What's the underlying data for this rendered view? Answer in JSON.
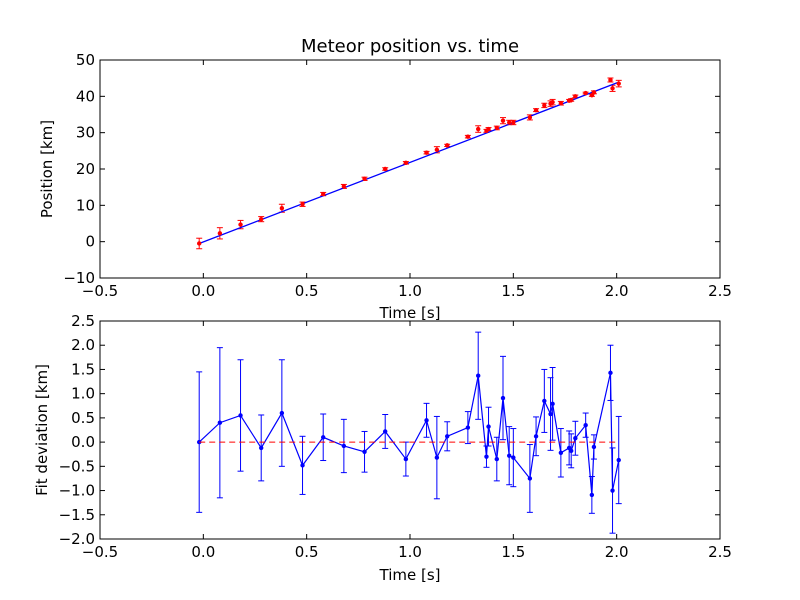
{
  "chart_data": [
    {
      "type": "scatter",
      "title": "Meteor position vs. time",
      "xlabel": "Time [s]",
      "ylabel": "Position [km]",
      "xlim": [
        -0.5,
        2.5
      ],
      "ylim": [
        -10,
        50
      ],
      "xticks": [
        -0.5,
        0.0,
        0.5,
        1.0,
        1.5,
        2.0,
        2.5
      ],
      "xtick_labels": [
        "−0.5",
        "0.0",
        "0.5",
        "1.0",
        "1.5",
        "2.0",
        "2.5"
      ],
      "yticks": [
        -10,
        0,
        10,
        20,
        30,
        40,
        50
      ],
      "ytick_labels": [
        "−10",
        "0",
        "10",
        "20",
        "30",
        "40",
        "50"
      ],
      "grid": false,
      "series": [
        {
          "kind": "measurements",
          "color": "#ff0000",
          "x": [
            -0.02,
            0.08,
            0.18,
            0.28,
            0.38,
            0.48,
            0.58,
            0.68,
            0.78,
            0.88,
            0.98,
            1.08,
            1.13,
            1.18,
            1.28,
            1.33,
            1.37,
            1.38,
            1.42,
            1.45,
            1.48,
            1.5,
            1.58,
            1.61,
            1.65,
            1.68,
            1.69,
            1.73,
            1.77,
            1.78,
            1.8,
            1.85,
            1.88,
            1.89,
            1.97,
            1.98,
            2.01
          ],
          "y": [
            -0.5,
            2.3,
            4.7,
            6.2,
            9.2,
            10.3,
            13.1,
            15.2,
            17.3,
            20.0,
            21.7,
            24.5,
            25.3,
            26.5,
            28.9,
            31.0,
            30.5,
            31.0,
            31.3,
            33.3,
            32.8,
            32.8,
            34.2,
            36.2,
            37.5,
            38.0,
            38.4,
            38.1,
            38.8,
            39.0,
            40.0,
            40.9,
            40.3,
            41.1,
            44.5,
            42.2,
            43.5
          ],
          "yerr": [
            1.45,
            1.55,
            1.15,
            0.7,
            1.1,
            0.6,
            0.45,
            0.55,
            0.45,
            0.35,
            0.35,
            0.35,
            0.85,
            0.3,
            0.35,
            0.9,
            0.4,
            0.4,
            0.5,
            0.85,
            0.6,
            0.6,
            0.7,
            0.4,
            0.6,
            0.75,
            0.75,
            0.5,
            0.35,
            0.35,
            0.35,
            0.25,
            0.3,
            0.4,
            0.55,
            0.85,
            0.9
          ]
        },
        {
          "kind": "fit",
          "color": "#0000ff",
          "x": [
            -0.02,
            2.01
          ],
          "y": [
            -0.5,
            43.9
          ]
        }
      ]
    },
    {
      "type": "line",
      "title": "",
      "xlabel": "Time [s]",
      "ylabel": "Fit deviation [km]",
      "xlim": [
        -0.5,
        2.5
      ],
      "ylim": [
        -2.0,
        2.5
      ],
      "xticks": [
        -0.5,
        0.0,
        0.5,
        1.0,
        1.5,
        2.0,
        2.5
      ],
      "xtick_labels": [
        "−0.5",
        "0.0",
        "0.5",
        "1.0",
        "1.5",
        "2.0",
        "2.5"
      ],
      "yticks": [
        -2.0,
        -1.5,
        -1.0,
        -0.5,
        0.0,
        0.5,
        1.0,
        1.5,
        2.0,
        2.5
      ],
      "ytick_labels": [
        "−2.0",
        "−1.5",
        "−1.0",
        "−0.5",
        "0.0",
        "0.5",
        "1.0",
        "1.5",
        "2.0",
        "2.5"
      ],
      "grid": false,
      "series": [
        {
          "kind": "residuals",
          "color": "#0000ff",
          "x": [
            -0.02,
            0.08,
            0.18,
            0.28,
            0.38,
            0.48,
            0.58,
            0.68,
            0.78,
            0.88,
            0.98,
            1.08,
            1.13,
            1.18,
            1.28,
            1.33,
            1.37,
            1.38,
            1.42,
            1.45,
            1.48,
            1.5,
            1.58,
            1.61,
            1.65,
            1.68,
            1.69,
            1.73,
            1.77,
            1.78,
            1.8,
            1.85,
            1.88,
            1.89,
            1.97,
            1.98,
            2.01
          ],
          "y": [
            0.0,
            0.4,
            0.55,
            -0.12,
            0.6,
            -0.48,
            0.1,
            -0.08,
            -0.2,
            0.22,
            -0.35,
            0.45,
            -0.32,
            0.12,
            0.3,
            1.37,
            -0.3,
            0.32,
            -0.35,
            0.91,
            -0.28,
            -0.32,
            -0.75,
            0.12,
            0.85,
            0.58,
            0.79,
            -0.22,
            -0.12,
            -0.18,
            0.08,
            0.35,
            -1.09,
            -0.1,
            1.43,
            -1.0,
            -0.37
          ],
          "yerr": [
            1.45,
            1.55,
            1.15,
            0.68,
            1.1,
            0.6,
            0.48,
            0.55,
            0.42,
            0.35,
            0.35,
            0.35,
            0.85,
            0.3,
            0.33,
            0.9,
            0.22,
            0.4,
            0.45,
            0.86,
            0.6,
            0.6,
            0.7,
            0.4,
            0.65,
            0.75,
            0.75,
            0.5,
            0.35,
            0.35,
            0.35,
            0.25,
            0.38,
            0.25,
            0.57,
            0.88,
            0.9
          ]
        },
        {
          "kind": "zero-line",
          "color": "#ff0000",
          "style": "dashed",
          "x": [
            -0.02,
            2.01
          ],
          "y": [
            0,
            0
          ]
        }
      ]
    }
  ]
}
